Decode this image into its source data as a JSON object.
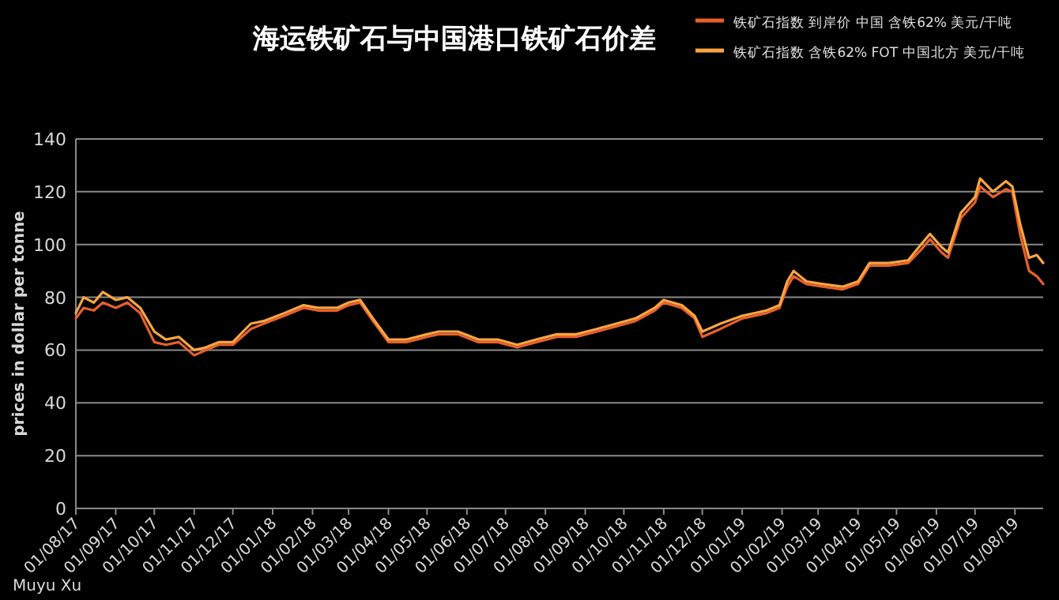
{
  "chart_data": {
    "type": "line",
    "title": "海运铁矿石与中国港口铁矿石价差",
    "ylabel": "prices in dollar per tonne",
    "annotations": [
      "Muyu Xu"
    ],
    "x": [
      "2017-08-01",
      "2017-08-07",
      "2017-08-15",
      "2017-08-22",
      "2017-09-01",
      "2017-09-10",
      "2017-09-20",
      "2017-10-01",
      "2017-10-10",
      "2017-10-20",
      "2017-11-01",
      "2017-11-10",
      "2017-11-20",
      "2017-12-01",
      "2017-12-15",
      "2017-12-25",
      "2018-01-10",
      "2018-01-25",
      "2018-02-05",
      "2018-02-20",
      "2018-03-01",
      "2018-03-10",
      "2018-03-20",
      "2018-04-01",
      "2018-04-15",
      "2018-05-01",
      "2018-05-10",
      "2018-05-25",
      "2018-06-10",
      "2018-06-25",
      "2018-07-10",
      "2018-07-25",
      "2018-08-10",
      "2018-08-25",
      "2018-09-10",
      "2018-09-25",
      "2018-10-10",
      "2018-10-25",
      "2018-11-01",
      "2018-11-15",
      "2018-11-25",
      "2018-12-01",
      "2018-12-15",
      "2019-01-01",
      "2019-01-20",
      "2019-01-30",
      "2019-02-05",
      "2019-02-10",
      "2019-02-20",
      "2019-03-05",
      "2019-03-20",
      "2019-04-01",
      "2019-04-10",
      "2019-04-25",
      "2019-05-10",
      "2019-05-20",
      "2019-05-27",
      "2019-06-05",
      "2019-06-10",
      "2019-06-20",
      "2019-07-01",
      "2019-07-05",
      "2019-07-15",
      "2019-07-25",
      "2019-07-30",
      "2019-08-05",
      "2019-08-12",
      "2019-08-18",
      "2019-08-23"
    ],
    "series": [
      {
        "name": "铁矿石指数 到岸价 中国 含铁62% 美元/干吨",
        "color": "#e8602c",
        "values": [
          72,
          76,
          75,
          78,
          76,
          78,
          74,
          63,
          62,
          63,
          58,
          60,
          62,
          62,
          68,
          70,
          73,
          76,
          75,
          75,
          77,
          78,
          71,
          63,
          63,
          65,
          66,
          66,
          63,
          63,
          61,
          63,
          65,
          65,
          67,
          69,
          71,
          75,
          78,
          76,
          72,
          65,
          68,
          72,
          74,
          76,
          84,
          88,
          85,
          84,
          83,
          85,
          92,
          92,
          93,
          98,
          102,
          97,
          95,
          110,
          116,
          122,
          118,
          121,
          120,
          104,
          90,
          88,
          85
        ]
      },
      {
        "name": "铁矿石指数 含铁62% FOT 中国北方 美元/干吨",
        "color": "#f9a642",
        "values": [
          74,
          80,
          78,
          82,
          79,
          80,
          76,
          67,
          64,
          65,
          60,
          61,
          63,
          63,
          70,
          71,
          74,
          77,
          76,
          76,
          78,
          79,
          72,
          64,
          64,
          66,
          67,
          67,
          64,
          64,
          62,
          64,
          66,
          66,
          68,
          70,
          72,
          76,
          79,
          77,
          73,
          67,
          70,
          73,
          75,
          77,
          86,
          90,
          86,
          85,
          84,
          86,
          93,
          93,
          94,
          100,
          104,
          99,
          97,
          112,
          118,
          125,
          120,
          124,
          122,
          108,
          95,
          96,
          93
        ]
      }
    ],
    "xlim": [
      "2017-08-01",
      "2019-08-23"
    ],
    "xticks": [
      {
        "value": "2017-08-01",
        "label": "01/08/17"
      },
      {
        "value": "2017-09-01",
        "label": "01/09/17"
      },
      {
        "value": "2017-10-01",
        "label": "01/10/17"
      },
      {
        "value": "2017-11-01",
        "label": "01/11/17"
      },
      {
        "value": "2017-12-01",
        "label": "01/12/17"
      },
      {
        "value": "2018-01-01",
        "label": "01/01/18"
      },
      {
        "value": "2018-02-01",
        "label": "01/02/18"
      },
      {
        "value": "2018-03-01",
        "label": "01/03/18"
      },
      {
        "value": "2018-04-01",
        "label": "01/04/18"
      },
      {
        "value": "2018-05-01",
        "label": "01/05/18"
      },
      {
        "value": "2018-06-01",
        "label": "01/06/18"
      },
      {
        "value": "2018-07-01",
        "label": "01/07/18"
      },
      {
        "value": "2018-08-01",
        "label": "01/08/18"
      },
      {
        "value": "2018-09-01",
        "label": "01/09/18"
      },
      {
        "value": "2018-10-01",
        "label": "01/10/18"
      },
      {
        "value": "2018-11-01",
        "label": "01/11/18"
      },
      {
        "value": "2018-12-01",
        "label": "01/12/18"
      },
      {
        "value": "2019-01-01",
        "label": "01/01/19"
      },
      {
        "value": "2019-02-01",
        "label": "01/02/19"
      },
      {
        "value": "2019-03-01",
        "label": "01/03/19"
      },
      {
        "value": "2019-04-01",
        "label": "01/04/19"
      },
      {
        "value": "2019-05-01",
        "label": "01/05/19"
      },
      {
        "value": "2019-06-01",
        "label": "01/06/19"
      },
      {
        "value": "2019-07-01",
        "label": "01/07/19"
      },
      {
        "value": "2019-08-01",
        "label": "01/08/19"
      }
    ],
    "ylim": [
      0,
      140
    ],
    "yticks": [
      0,
      20,
      40,
      60,
      80,
      100,
      120,
      140
    ],
    "grid": "y",
    "legend": "top right"
  }
}
